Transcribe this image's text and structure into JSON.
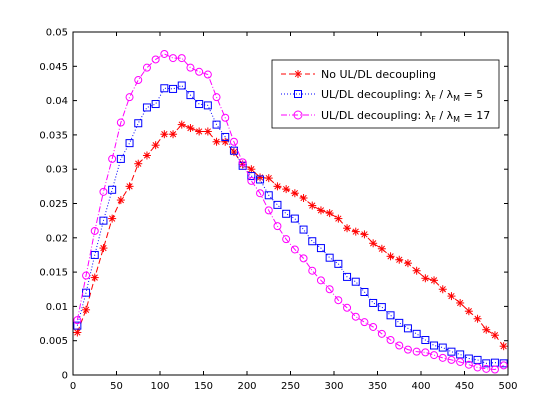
{
  "chart_data": {
    "type": "line",
    "xlim": [
      0,
      500
    ],
    "ylim": [
      0,
      0.05
    ],
    "xticks": [
      "0",
      "50",
      "100",
      "150",
      "200",
      "250",
      "300",
      "350",
      "400",
      "450",
      "500"
    ],
    "yticks": [
      "0",
      "0.005",
      "0.01",
      "0.015",
      "0.02",
      "0.025",
      "0.03",
      "0.035",
      "0.04",
      "0.045",
      "0.05"
    ],
    "grid": false,
    "legend_position": "top-right",
    "series": [
      {
        "name": "No UL/DL decoupling",
        "color": "#ff0000",
        "line_style": "dashed",
        "marker": "asterisk",
        "x": [
          5,
          15,
          25,
          35,
          45,
          55,
          65,
          75,
          85,
          95,
          105,
          115,
          125,
          135,
          145,
          155,
          165,
          175,
          185,
          195,
          205,
          215,
          225,
          235,
          245,
          255,
          265,
          275,
          285,
          295,
          305,
          315,
          325,
          335,
          345,
          355,
          365,
          375,
          385,
          395,
          405,
          415,
          425,
          435,
          445,
          455,
          465,
          475,
          485,
          495
        ],
        "y": [
          0.0062,
          0.0095,
          0.0142,
          0.0185,
          0.0228,
          0.0255,
          0.0275,
          0.0308,
          0.032,
          0.0335,
          0.0351,
          0.0351,
          0.0365,
          0.036,
          0.0355,
          0.0355,
          0.034,
          0.034,
          0.0325,
          0.0307,
          0.03,
          0.0288,
          0.0287,
          0.0275,
          0.0271,
          0.0265,
          0.0258,
          0.0247,
          0.024,
          0.0236,
          0.0228,
          0.0214,
          0.0209,
          0.0205,
          0.0192,
          0.0184,
          0.0173,
          0.0168,
          0.0163,
          0.0152,
          0.0141,
          0.0138,
          0.0125,
          0.0115,
          0.0105,
          0.0093,
          0.0082,
          0.0066,
          0.0058,
          0.0042
        ]
      },
      {
        "name": "UL/DL decoupling: λF / λM = 5",
        "color": "#0000ff",
        "line_style": "dotted",
        "marker": "square",
        "x": [
          5,
          15,
          25,
          35,
          45,
          55,
          65,
          75,
          85,
          95,
          105,
          115,
          125,
          135,
          145,
          155,
          165,
          175,
          185,
          195,
          205,
          215,
          225,
          235,
          245,
          255,
          265,
          275,
          285,
          295,
          305,
          315,
          325,
          335,
          345,
          355,
          365,
          375,
          385,
          395,
          405,
          415,
          425,
          435,
          445,
          455,
          465,
          475,
          485,
          495
        ],
        "y": [
          0.0072,
          0.012,
          0.0175,
          0.0225,
          0.027,
          0.0315,
          0.0338,
          0.0367,
          0.039,
          0.0395,
          0.0418,
          0.0417,
          0.0422,
          0.0408,
          0.0395,
          0.0393,
          0.0365,
          0.0347,
          0.0327,
          0.0305,
          0.029,
          0.0285,
          0.0262,
          0.0248,
          0.0235,
          0.0228,
          0.0212,
          0.0195,
          0.0185,
          0.0171,
          0.0162,
          0.0143,
          0.0136,
          0.0121,
          0.0105,
          0.0099,
          0.0087,
          0.0076,
          0.0068,
          0.006,
          0.0051,
          0.0043,
          0.004,
          0.0034,
          0.003,
          0.0024,
          0.0022,
          0.0017,
          0.0018,
          0.0017
        ]
      },
      {
        "name": "UL/DL decoupling: λF / λM = 17",
        "color": "#ff00ff",
        "line_style": "dash-dot",
        "marker": "circle",
        "x": [
          5,
          15,
          25,
          35,
          45,
          55,
          65,
          75,
          85,
          95,
          105,
          115,
          125,
          135,
          145,
          155,
          165,
          175,
          185,
          195,
          205,
          215,
          225,
          235,
          245,
          255,
          265,
          275,
          285,
          295,
          305,
          315,
          325,
          335,
          345,
          355,
          365,
          375,
          385,
          395,
          405,
          415,
          425,
          435,
          445,
          455,
          465,
          475,
          485,
          495
        ],
        "y": [
          0.008,
          0.0145,
          0.021,
          0.0267,
          0.0315,
          0.0368,
          0.0405,
          0.043,
          0.0448,
          0.046,
          0.0468,
          0.0462,
          0.0462,
          0.0448,
          0.0442,
          0.0438,
          0.0405,
          0.0375,
          0.034,
          0.031,
          0.0283,
          0.0265,
          0.024,
          0.0217,
          0.0198,
          0.0183,
          0.017,
          0.0152,
          0.0138,
          0.0125,
          0.0109,
          0.0098,
          0.0085,
          0.0077,
          0.007,
          0.006,
          0.0051,
          0.0043,
          0.0037,
          0.0034,
          0.0033,
          0.0029,
          0.0025,
          0.0022,
          0.0019,
          0.0015,
          0.0011,
          0.0009,
          0.0008,
          0.0014
        ]
      }
    ]
  },
  "legend": {
    "items": [
      {
        "text": "No UL/DL decoupling"
      },
      {
        "text": "UL/DL decoupling: λ",
        "sub1": "F",
        "mid": " / λ",
        "sub2": "M",
        "tail": " = 5"
      },
      {
        "text": "UL/DL decoupling: λ",
        "sub1": "F",
        "mid": " / λ",
        "sub2": "M",
        "tail": " = 17"
      }
    ]
  }
}
